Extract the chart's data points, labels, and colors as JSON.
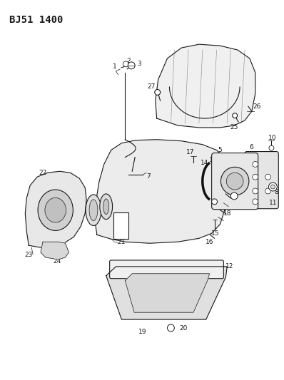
{
  "title": "BJ51 1400",
  "bg_color": "#ffffff",
  "line_color": "#1a1a1a",
  "title_fontsize": 10,
  "label_fontsize": 6.5,
  "figsize": [
    3.98,
    5.33
  ],
  "dpi": 100
}
